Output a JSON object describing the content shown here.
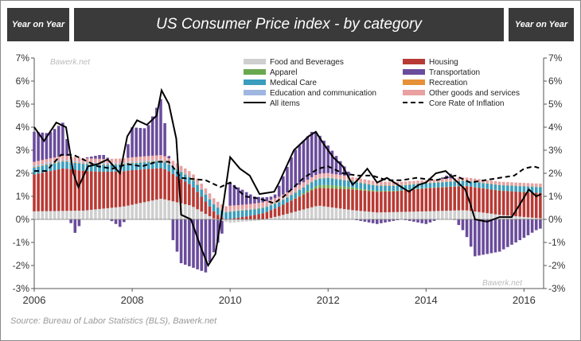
{
  "header": {
    "left_label": "Year on Year",
    "title": "US Consumer Price index - by category",
    "right_label": "Year on Year"
  },
  "watermarks": [
    "Bawerk.net",
    "Bawerk.net"
  ],
  "source": "Source: Bureau of Labor Statistics (BLS), Bawerk.net",
  "colors": {
    "food": "#cfcfcf",
    "housing": "#b83a34",
    "apparel": "#6aa84f",
    "transportation": "#6a4c9c",
    "medical": "#3a9dbd",
    "recreation": "#e69138",
    "education": "#9fb7e0",
    "other": "#e8a0a0",
    "all_items": "#000000",
    "core": "#000000"
  },
  "chart_data": {
    "type": "bar",
    "stacked": true,
    "title": "US Consumer Price index - by category",
    "ylim": [
      -3,
      7
    ],
    "yticks": [
      "-3%",
      "-2%",
      "-1%",
      "0%",
      "1%",
      "2%",
      "3%",
      "4%",
      "5%",
      "6%",
      "7%"
    ],
    "xlim": [
      2006,
      2016.4
    ],
    "xticks": [
      "2006",
      "2008",
      "2010",
      "2012",
      "2014",
      "2016"
    ],
    "legend_position": "top-center",
    "grid": false,
    "legend": [
      {
        "key": "food",
        "label": "Food and Beverages",
        "kind": "box"
      },
      {
        "key": "housing",
        "label": "Housing",
        "kind": "box"
      },
      {
        "key": "apparel",
        "label": "Apparel",
        "kind": "box"
      },
      {
        "key": "transportation",
        "label": "Transportation",
        "kind": "box"
      },
      {
        "key": "medical",
        "label": "Medical Care",
        "kind": "box"
      },
      {
        "key": "recreation",
        "label": "Recreation",
        "kind": "box"
      },
      {
        "key": "education",
        "label": "Education and communication",
        "kind": "box"
      },
      {
        "key": "other",
        "label": "Other goods and services",
        "kind": "box"
      },
      {
        "key": "all_items",
        "label": "All items",
        "kind": "line"
      },
      {
        "key": "core",
        "label": "Core Rate of Inflation",
        "kind": "dash"
      }
    ],
    "series_order": [
      "food",
      "housing",
      "apparel",
      "medical",
      "recreation",
      "education",
      "other",
      "transportation"
    ],
    "knots": {
      "food": [
        [
          2006.0,
          0.35
        ],
        [
          2007.0,
          0.38
        ],
        [
          2007.8,
          0.55
        ],
        [
          2008.6,
          0.9
        ],
        [
          2009.2,
          0.6
        ],
        [
          2009.7,
          0.0
        ],
        [
          2010.0,
          -0.15
        ],
        [
          2010.6,
          -0.05
        ],
        [
          2011.0,
          0.15
        ],
        [
          2011.8,
          0.6
        ],
        [
          2012.5,
          0.4
        ],
        [
          2013.0,
          0.3
        ],
        [
          2014.0,
          0.35
        ],
        [
          2014.8,
          0.4
        ],
        [
          2015.5,
          0.2
        ],
        [
          2016.3,
          0.05
        ]
      ],
      "housing": [
        [
          2006.0,
          1.6
        ],
        [
          2006.6,
          1.85
        ],
        [
          2007.4,
          1.6
        ],
        [
          2008.0,
          1.5
        ],
        [
          2008.7,
          1.3
        ],
        [
          2009.3,
          0.8
        ],
        [
          2009.9,
          0.0
        ],
        [
          2010.4,
          0.15
        ],
        [
          2011.0,
          0.4
        ],
        [
          2011.7,
          0.75
        ],
        [
          2012.5,
          0.9
        ],
        [
          2013.4,
          0.9
        ],
        [
          2014.0,
          1.0
        ],
        [
          2014.8,
          1.05
        ],
        [
          2015.5,
          1.05
        ],
        [
          2016.3,
          1.1
        ]
      ],
      "apparel": [
        [
          2006.0,
          0.0
        ],
        [
          2011.2,
          0.0
        ],
        [
          2012.0,
          0.15
        ],
        [
          2012.8,
          0.05
        ],
        [
          2013.5,
          0.02
        ],
        [
          2016.3,
          0.0
        ]
      ],
      "medical": [
        [
          2006.0,
          0.3
        ],
        [
          2008.0,
          0.3
        ],
        [
          2009.0,
          0.3
        ],
        [
          2010.0,
          0.3
        ],
        [
          2011.0,
          0.2
        ],
        [
          2012.0,
          0.3
        ],
        [
          2013.0,
          0.22
        ],
        [
          2014.0,
          0.2
        ],
        [
          2015.0,
          0.22
        ],
        [
          2016.3,
          0.25
        ]
      ],
      "recreation": [
        [
          2006.0,
          0.03
        ],
        [
          2016.3,
          0.02
        ]
      ],
      "education": [
        [
          2006.0,
          0.06
        ],
        [
          2016.3,
          0.0
        ]
      ],
      "other": [
        [
          2006.0,
          0.16
        ],
        [
          2008.0,
          0.18
        ],
        [
          2009.0,
          0.2
        ],
        [
          2010.0,
          0.2
        ],
        [
          2011.0,
          0.18
        ],
        [
          2012.0,
          0.16
        ],
        [
          2013.0,
          0.14
        ],
        [
          2014.0,
          0.1
        ],
        [
          2015.0,
          0.12
        ],
        [
          2016.3,
          0.13
        ]
      ],
      "transportation": [
        [
          2006.0,
          1.3
        ],
        [
          2006.3,
          1.1
        ],
        [
          2006.6,
          1.45
        ],
        [
          2006.8,
          -0.7
        ],
        [
          2007.0,
          0.0
        ],
        [
          2007.4,
          0.2
        ],
        [
          2007.8,
          -0.4
        ],
        [
          2008.0,
          1.3
        ],
        [
          2008.3,
          1.2
        ],
        [
          2008.6,
          2.5
        ],
        [
          2008.8,
          -0.7
        ],
        [
          2009.0,
          -1.9
        ],
        [
          2009.5,
          -2.3
        ],
        [
          2009.9,
          -0.2
        ],
        [
          2010.0,
          1.0
        ],
        [
          2010.5,
          0.3
        ],
        [
          2010.9,
          0.1
        ],
        [
          2011.3,
          1.6
        ],
        [
          2011.7,
          2.0
        ],
        [
          2012.0,
          1.2
        ],
        [
          2012.5,
          0.0
        ],
        [
          2013.0,
          -0.2
        ],
        [
          2013.5,
          0.0
        ],
        [
          2014.0,
          -0.2
        ],
        [
          2014.5,
          0.2
        ],
        [
          2014.8,
          -0.6
        ],
        [
          2015.0,
          -1.6
        ],
        [
          2015.5,
          -1.4
        ],
        [
          2016.0,
          -0.8
        ],
        [
          2016.3,
          -0.4
        ]
      ]
    },
    "all_items": [
      [
        2006.0,
        4.0
      ],
      [
        2006.2,
        3.4
      ],
      [
        2006.45,
        4.2
      ],
      [
        2006.65,
        4.0
      ],
      [
        2006.8,
        2.0
      ],
      [
        2006.9,
        1.4
      ],
      [
        2007.1,
        2.3
      ],
      [
        2007.3,
        2.4
      ],
      [
        2007.5,
        2.6
      ],
      [
        2007.75,
        2.0
      ],
      [
        2007.9,
        3.6
      ],
      [
        2008.1,
        4.3
      ],
      [
        2008.3,
        4.1
      ],
      [
        2008.5,
        4.5
      ],
      [
        2008.6,
        5.6
      ],
      [
        2008.75,
        5.0
      ],
      [
        2008.9,
        3.5
      ],
      [
        2009.0,
        0.2
      ],
      [
        2009.2,
        0.0
      ],
      [
        2009.4,
        -1.2
      ],
      [
        2009.55,
        -2.0
      ],
      [
        2009.7,
        -1.5
      ],
      [
        2009.85,
        0.5
      ],
      [
        2010.0,
        2.7
      ],
      [
        2010.2,
        2.2
      ],
      [
        2010.4,
        1.9
      ],
      [
        2010.6,
        1.1
      ],
      [
        2010.9,
        1.2
      ],
      [
        2011.0,
        1.6
      ],
      [
        2011.3,
        3.0
      ],
      [
        2011.6,
        3.6
      ],
      [
        2011.75,
        3.8
      ],
      [
        2011.9,
        3.3
      ],
      [
        2012.1,
        2.7
      ],
      [
        2012.3,
        2.3
      ],
      [
        2012.5,
        1.5
      ],
      [
        2012.6,
        1.7
      ],
      [
        2012.8,
        2.2
      ],
      [
        2013.0,
        1.6
      ],
      [
        2013.2,
        1.8
      ],
      [
        2013.5,
        1.4
      ],
      [
        2013.65,
        1.2
      ],
      [
        2013.85,
        1.5
      ],
      [
        2014.0,
        1.6
      ],
      [
        2014.2,
        2.0
      ],
      [
        2014.4,
        2.1
      ],
      [
        2014.6,
        1.7
      ],
      [
        2014.8,
        1.3
      ],
      [
        2014.9,
        0.7
      ],
      [
        2015.0,
        0.0
      ],
      [
        2015.25,
        -0.1
      ],
      [
        2015.5,
        0.1
      ],
      [
        2015.75,
        0.1
      ],
      [
        2015.9,
        0.6
      ],
      [
        2016.1,
        1.3
      ],
      [
        2016.25,
        1.0
      ],
      [
        2016.35,
        1.1
      ]
    ],
    "core": [
      [
        2006.0,
        2.1
      ],
      [
        2006.25,
        2.1
      ],
      [
        2006.55,
        2.8
      ],
      [
        2006.8,
        2.8
      ],
      [
        2007.0,
        2.6
      ],
      [
        2007.3,
        2.3
      ],
      [
        2007.6,
        2.2
      ],
      [
        2007.9,
        2.4
      ],
      [
        2008.2,
        2.3
      ],
      [
        2008.5,
        2.5
      ],
      [
        2008.75,
        2.5
      ],
      [
        2009.0,
        1.8
      ],
      [
        2009.5,
        1.7
      ],
      [
        2009.8,
        1.4
      ],
      [
        2010.0,
        1.6
      ],
      [
        2010.3,
        1.0
      ],
      [
        2010.6,
        0.9
      ],
      [
        2010.9,
        0.7
      ],
      [
        2011.1,
        1.0
      ],
      [
        2011.5,
        1.8
      ],
      [
        2011.8,
        2.2
      ],
      [
        2012.0,
        2.3
      ],
      [
        2012.3,
        2.0
      ],
      [
        2012.6,
        1.9
      ],
      [
        2012.9,
        1.9
      ],
      [
        2013.2,
        1.7
      ],
      [
        2013.5,
        1.7
      ],
      [
        2013.8,
        1.8
      ],
      [
        2014.2,
        1.7
      ],
      [
        2014.6,
        1.9
      ],
      [
        2014.9,
        1.6
      ],
      [
        2015.2,
        1.7
      ],
      [
        2015.5,
        1.8
      ],
      [
        2015.8,
        1.9
      ],
      [
        2016.0,
        2.2
      ],
      [
        2016.2,
        2.3
      ],
      [
        2016.35,
        2.2
      ]
    ]
  }
}
